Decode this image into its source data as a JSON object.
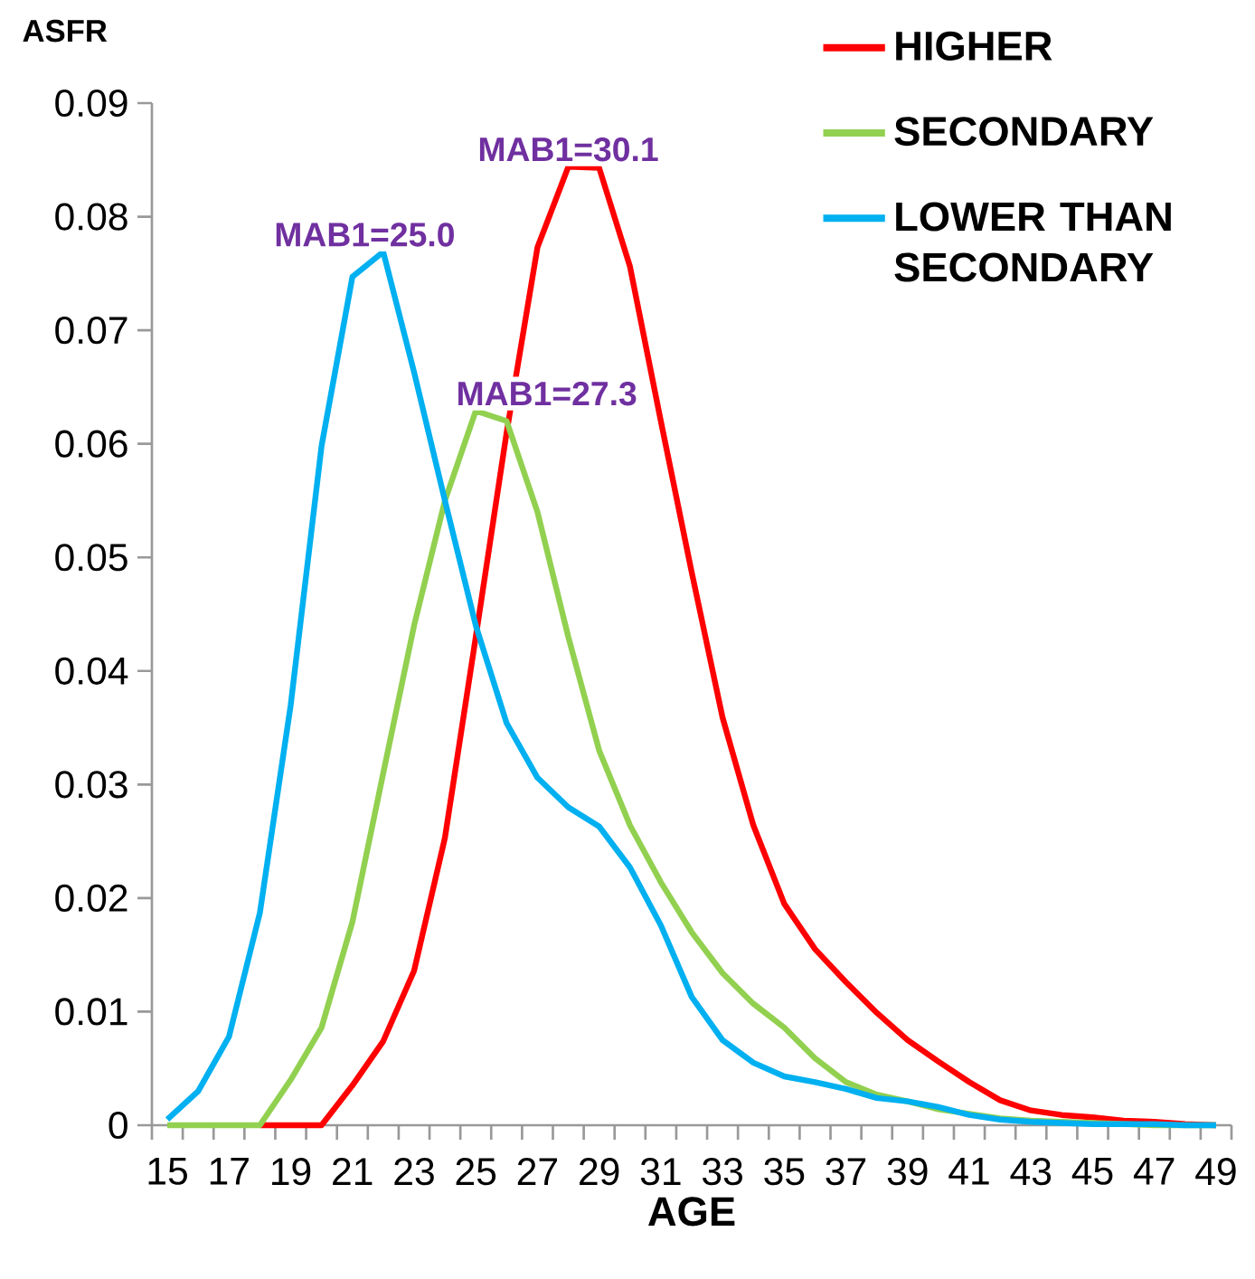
{
  "chart_data": {
    "type": "line",
    "ylabel": "ASFR",
    "xlabel": "AGE",
    "categories": [
      "15",
      null,
      "17",
      null,
      "19",
      null,
      "21",
      null,
      "23",
      null,
      "25",
      null,
      "27",
      null,
      "29",
      null,
      "31",
      null,
      "33",
      null,
      "35",
      null,
      "37",
      null,
      "39",
      null,
      "41",
      null,
      "43",
      null,
      "45",
      null,
      "47",
      null,
      "49"
    ],
    "series": [
      {
        "name": "HIGHER",
        "color": "#ff0000",
        "values": [
          null,
          null,
          null,
          0,
          0,
          0,
          0.0035,
          0.0074,
          0.0136,
          0.0253,
          0.043,
          0.061,
          0.0773,
          0.0844,
          0.0843,
          0.0756,
          0.062,
          0.0487,
          0.0359,
          0.0264,
          0.0195,
          0.0155,
          0.0126,
          0.0099,
          0.0075,
          0.0056,
          0.0038,
          0.0022,
          0.0013,
          0.0009,
          0.0007,
          0.0004,
          0.0003,
          0.0001,
          0
        ]
      },
      {
        "name": "SECONDARY",
        "color": "#92d050",
        "values": [
          0,
          0,
          0,
          0,
          0.004,
          0.0086,
          0.0179,
          0.031,
          0.044,
          0.055,
          0.0629,
          0.062,
          0.054,
          0.043,
          0.033,
          0.0264,
          0.0214,
          0.017,
          0.0134,
          0.0107,
          0.0086,
          0.0059,
          0.0038,
          0.0027,
          0.0021,
          0.0014,
          0.001,
          0.0006,
          0.0004,
          0.0003,
          0.0002,
          0.0001,
          0,
          0,
          0
        ]
      },
      {
        "name": "LOWER THAN SECONDARY",
        "color": "#00b0f0",
        "values": [
          0.0005,
          0.003,
          0.0078,
          0.0187,
          0.037,
          0.0598,
          0.0747,
          0.0769,
          0.0663,
          0.055,
          0.044,
          0.0354,
          0.0306,
          0.028,
          0.0263,
          0.0227,
          0.0176,
          0.0113,
          0.0075,
          0.0055,
          0.0043,
          0.0038,
          0.0032,
          0.0024,
          0.0021,
          0.0016,
          0.0009,
          0.0005,
          0.0003,
          0.0002,
          0.0001,
          0.0001,
          0.0001,
          0,
          0
        ]
      }
    ],
    "annotations": [
      "MAB1=30.1",
      "MAB1=27.3",
      "MAB1=25.0"
    ],
    "ylim": [
      0,
      0.09
    ],
    "yticks": [
      0,
      0.01,
      0.02,
      0.03,
      0.04,
      0.05,
      0.06,
      0.07,
      0.08,
      0.09
    ],
    "grid": false,
    "legend": "top right",
    "line_style": "solid"
  }
}
